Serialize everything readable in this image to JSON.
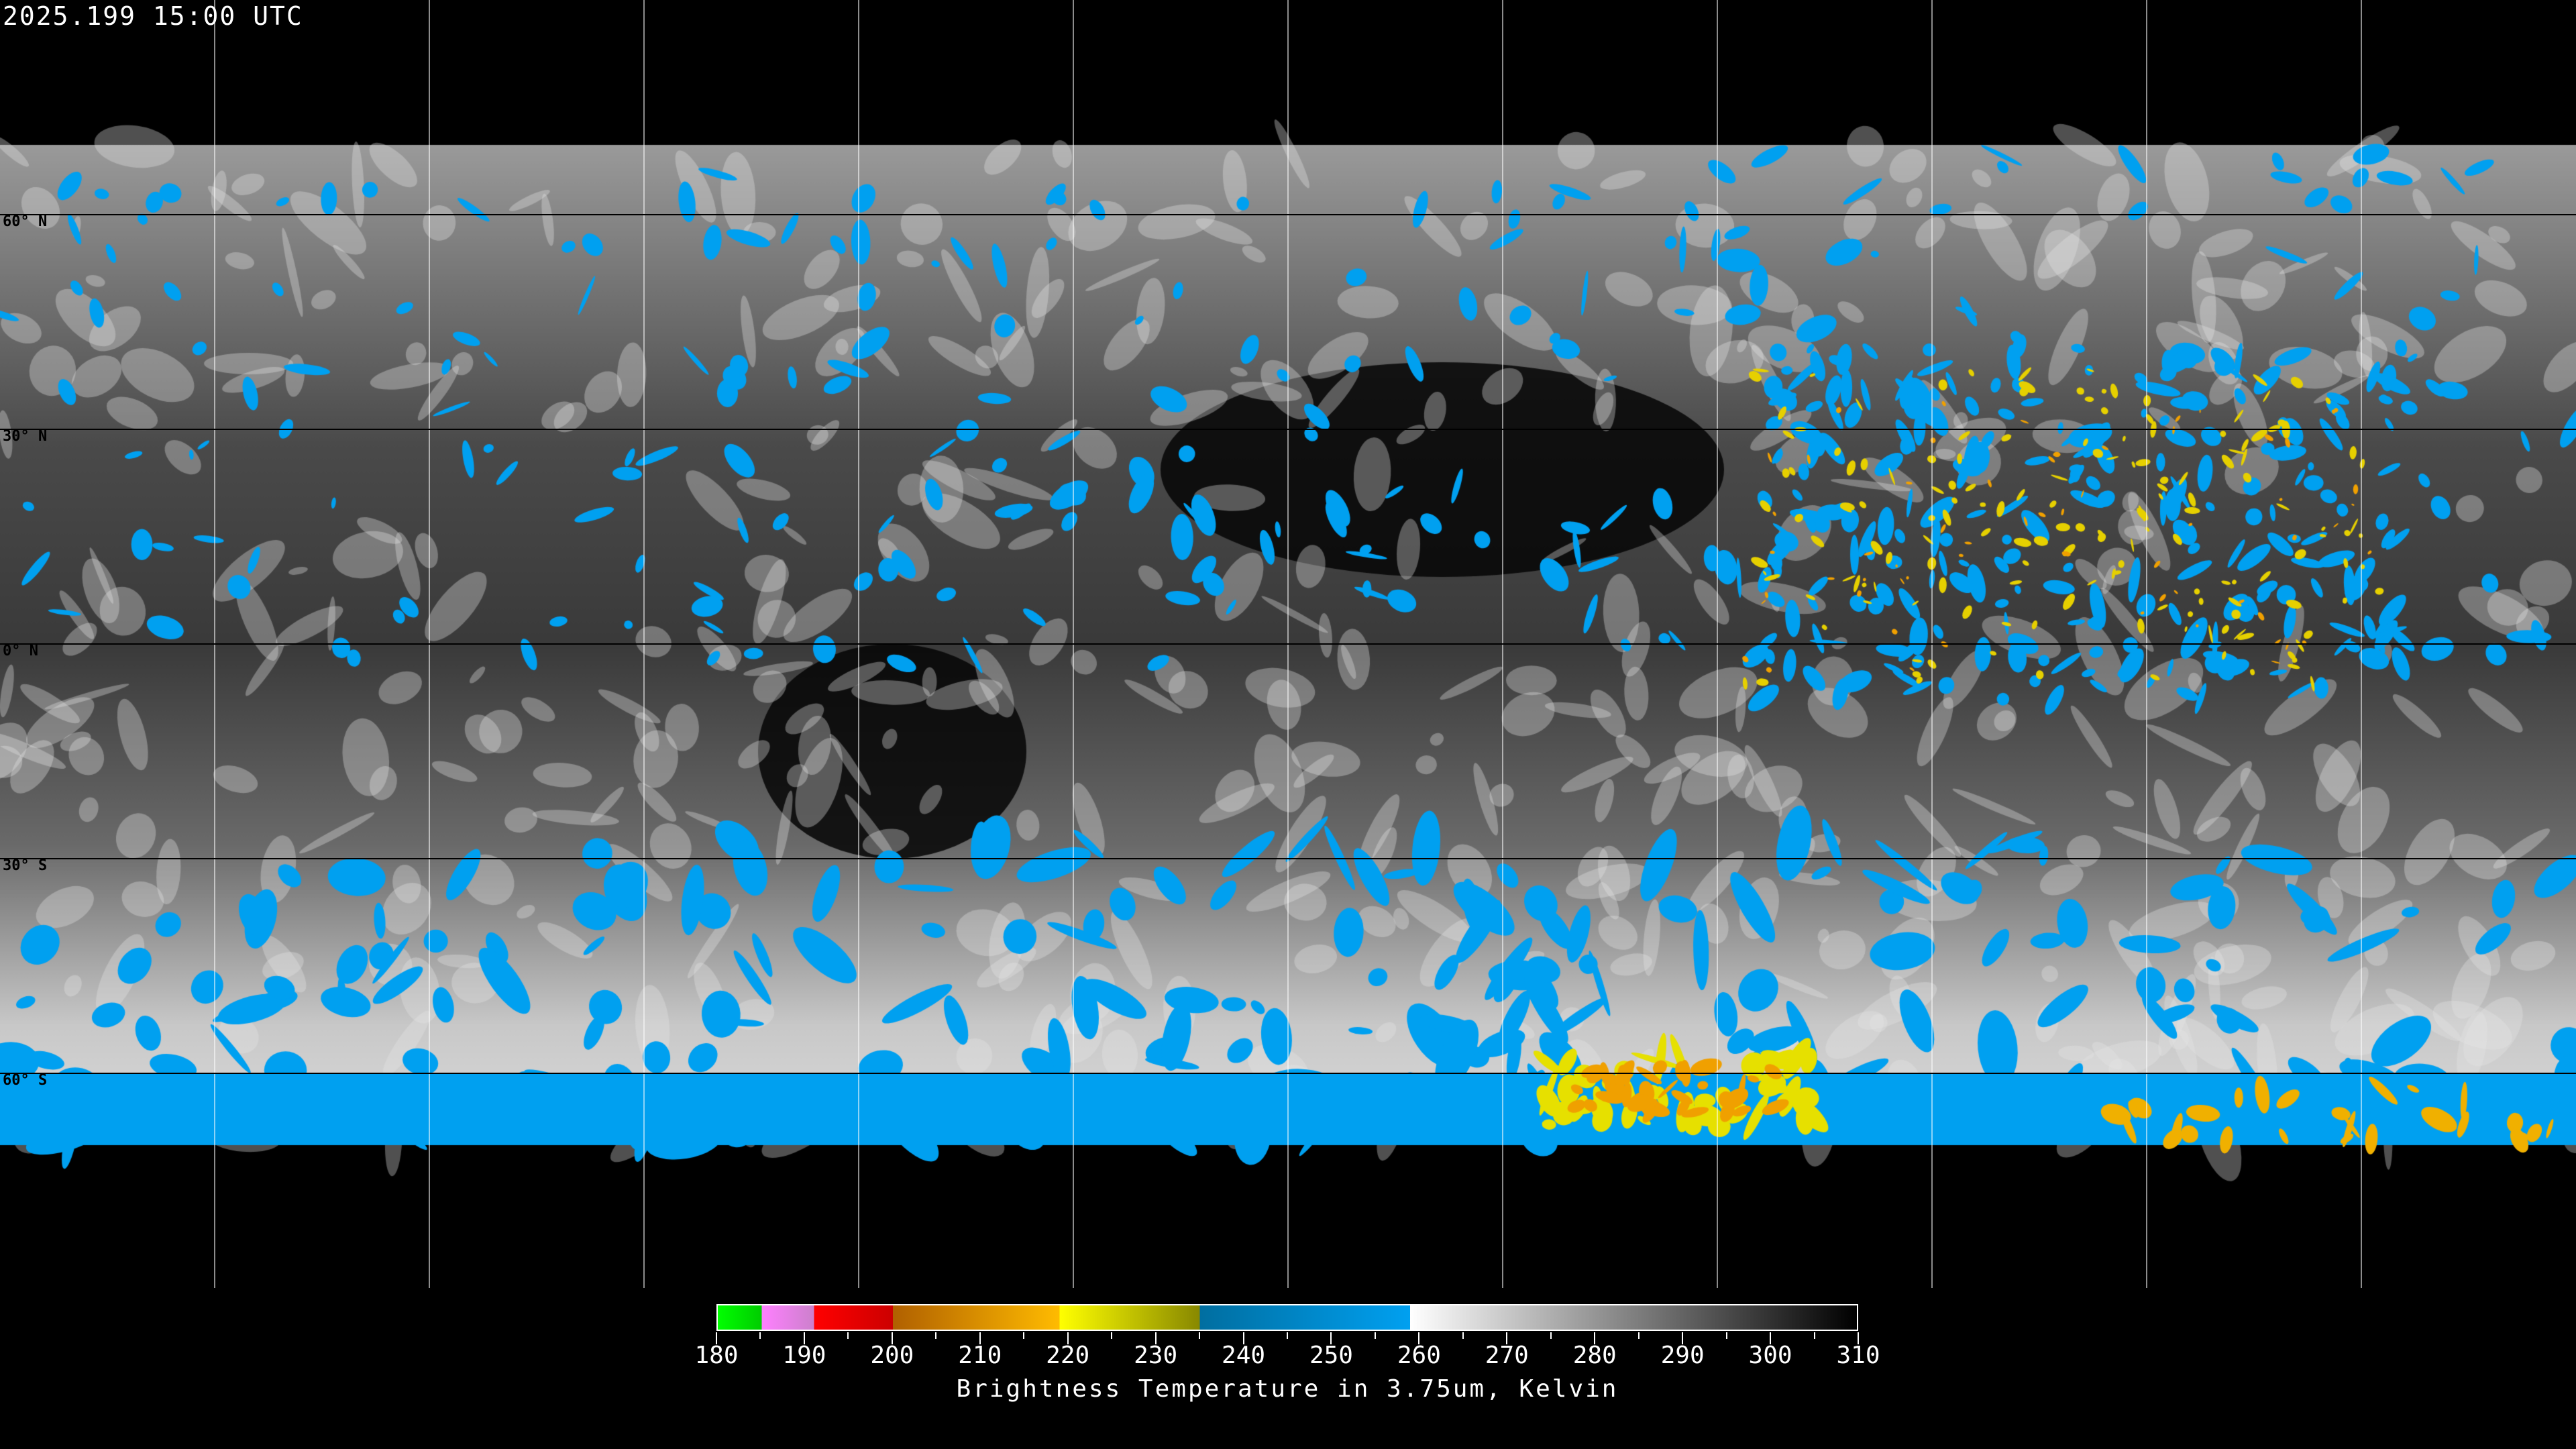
{
  "header": {
    "timestamp": "2025.199 15:00 UTC"
  },
  "map": {
    "projection": "equirectangular",
    "lat_labels": [
      "60° N",
      "30° N",
      "0° N",
      "30° S",
      "60° S"
    ],
    "lat_values": [
      60,
      30,
      0,
      -30,
      -60
    ],
    "lon_grid_spacing_deg": 30,
    "coastline_color": "#ffffff"
  },
  "colorbar": {
    "title": "Brightness Temperature in 3.75um, Kelvin",
    "min": 180,
    "max": 310,
    "tick_labels": [
      "180",
      "190",
      "200",
      "210",
      "220",
      "230",
      "240",
      "250",
      "260",
      "270",
      "280",
      "290",
      "300",
      "310"
    ],
    "segments": [
      {
        "from": 180,
        "to": 185,
        "colors": [
          "#00ff00",
          "#00cc00"
        ]
      },
      {
        "from": 185,
        "to": 191,
        "colors": [
          "#ff80ff",
          "#cc80cc"
        ]
      },
      {
        "from": 191,
        "to": 200,
        "colors": [
          "#ff0000",
          "#cc0000"
        ]
      },
      {
        "from": 200,
        "to": 219,
        "colors": [
          "#b06000",
          "#ffbb00"
        ]
      },
      {
        "from": 219,
        "to": 235,
        "colors": [
          "#ffff00",
          "#888800"
        ]
      },
      {
        "from": 235,
        "to": 259,
        "colors": [
          "#006ea0",
          "#00a0f0"
        ]
      },
      {
        "from": 259,
        "to": 310,
        "colors": [
          "#ffffff",
          "#000000"
        ]
      }
    ]
  }
}
